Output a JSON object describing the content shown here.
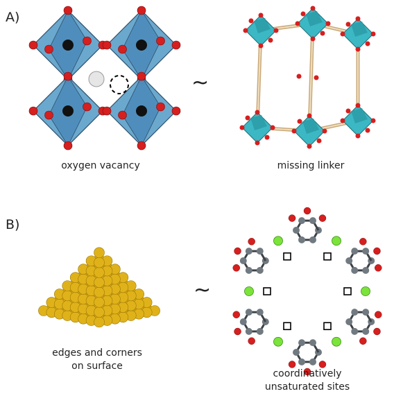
{
  "panel_a": {
    "label": "A)",
    "left_caption": "oxygen vacancy",
    "right_caption": "missing linker",
    "similarity_symbol": "~",
    "left_figure_icon": "perovskite-octahedra-icon",
    "right_figure_icon": "mof-missing-linker-icon"
  },
  "panel_b": {
    "label": "B)",
    "left_caption_line1": "edges and corners",
    "left_caption_line2": "on surface",
    "right_caption_line1": "coordinatively",
    "right_caption_line2": "unsaturated sites",
    "similarity_symbol": "~",
    "left_figure_icon": "gold-nanoparticle-pyramid-icon",
    "right_figure_icon": "mof-ring-open-metal-sites-icon"
  },
  "colors": {
    "octahedron": "#5b9ec9",
    "oxygen": "#d61f1f",
    "cation": "#111111",
    "mof_cluster": "#3bb8c4",
    "gold": "#e0b21a",
    "carbon": "#707a80",
    "open_metal": "#7be33a"
  }
}
